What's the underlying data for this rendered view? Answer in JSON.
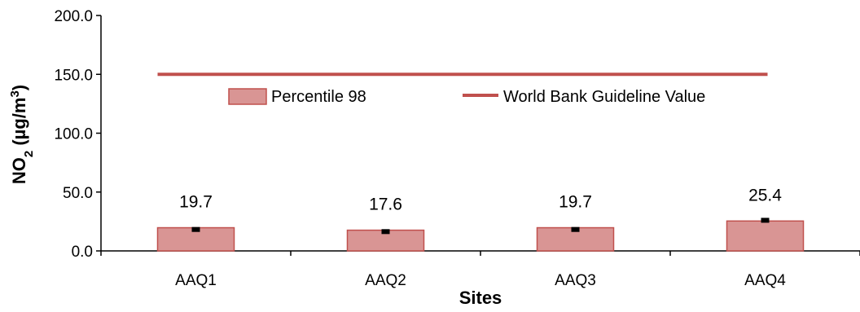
{
  "chart_data": {
    "type": "bar",
    "categories": [
      "AAQ1",
      "AAQ2",
      "AAQ3",
      "AAQ4"
    ],
    "series": [
      {
        "name": "Percentile 98",
        "values": [
          19.7,
          17.6,
          19.7,
          25.4
        ],
        "data_labels": [
          "19.7",
          "17.6",
          "19.7",
          "25.4"
        ],
        "error_marker": [
          18.2,
          16.4,
          18.2,
          26.0
        ],
        "color": "#d99594",
        "border_color": "#c0504d"
      }
    ],
    "reference_line": {
      "name": "World Bank Guideline Value",
      "value": 150,
      "color": "#c0504d"
    },
    "xlabel": "Sites",
    "ylabel_main": "NO",
    "ylabel_sub": "2",
    "ylabel_units": " (µg/m",
    "ylabel_sup": "3",
    "ylabel_close": ")",
    "ylim": [
      0,
      200
    ],
    "yticks": [
      0,
      50,
      100,
      150,
      200
    ],
    "ytick_labels": [
      "0.0",
      "50.0",
      "100.0",
      "150.0",
      "200.0"
    ],
    "grid": false,
    "legend_position": "upper-center"
  }
}
